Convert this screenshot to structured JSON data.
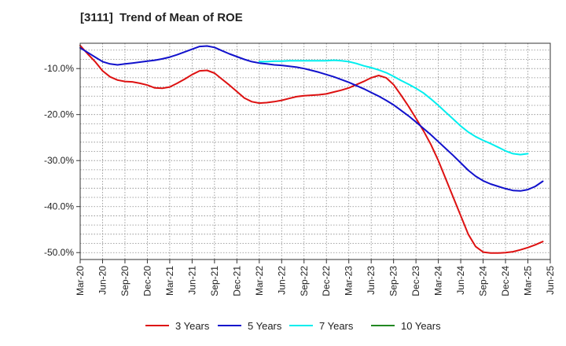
{
  "chart_data": {
    "type": "line",
    "title": "[3111]  Trend of Mean of ROE",
    "xlabel": "",
    "ylabel": "",
    "x_ticks": [
      "Mar-20",
      "Jun-20",
      "Sep-20",
      "Dec-20",
      "Mar-21",
      "Jun-21",
      "Sep-21",
      "Dec-21",
      "Mar-22",
      "Jun-22",
      "Sep-22",
      "Dec-22",
      "Mar-23",
      "Jun-23",
      "Sep-23",
      "Dec-23",
      "Mar-24",
      "Jun-24",
      "Sep-24",
      "Dec-24",
      "Mar-25",
      "Jun-25"
    ],
    "y_ticks": [
      -10,
      -20,
      -30,
      -40,
      -50
    ],
    "y_tick_labels": [
      "-10.0%",
      "-20.0%",
      "-30.0%",
      "-40.0%",
      "-50.0%"
    ],
    "ylim": [
      -51.5,
      -4.5
    ],
    "grid": true,
    "legend_position": "bottom",
    "series": [
      {
        "name": "3 Years",
        "color": "#dd1111",
        "points": [
          [
            "Mar-20",
            -5.0
          ],
          [
            "Apr-20",
            -6.8
          ],
          [
            "May-20",
            -8.5
          ],
          [
            "Jun-20",
            -10.5
          ],
          [
            "Jul-20",
            -11.8
          ],
          [
            "Aug-20",
            -12.5
          ],
          [
            "Sep-20",
            -12.8
          ],
          [
            "Oct-20",
            -12.9
          ],
          [
            "Nov-20",
            -13.2
          ],
          [
            "Dec-20",
            -13.6
          ],
          [
            "Jan-21",
            -14.2
          ],
          [
            "Feb-21",
            -14.3
          ],
          [
            "Mar-21",
            -14.0
          ],
          [
            "Apr-21",
            -13.2
          ],
          [
            "May-21",
            -12.3
          ],
          [
            "Jun-21",
            -11.3
          ],
          [
            "Jul-21",
            -10.5
          ],
          [
            "Aug-21",
            -10.4
          ],
          [
            "Sep-21",
            -11.0
          ],
          [
            "Oct-21",
            -12.3
          ],
          [
            "Nov-21",
            -13.6
          ],
          [
            "Dec-21",
            -15.0
          ],
          [
            "Jan-22",
            -16.4
          ],
          [
            "Feb-22",
            -17.2
          ],
          [
            "Mar-22",
            -17.5
          ],
          [
            "Apr-22",
            -17.4
          ],
          [
            "May-22",
            -17.2
          ],
          [
            "Jun-22",
            -16.9
          ],
          [
            "Jul-22",
            -16.5
          ],
          [
            "Aug-22",
            -16.1
          ],
          [
            "Sep-22",
            -15.9
          ],
          [
            "Oct-22",
            -15.8
          ],
          [
            "Nov-22",
            -15.7
          ],
          [
            "Dec-22",
            -15.5
          ],
          [
            "Jan-23",
            -15.1
          ],
          [
            "Feb-23",
            -14.7
          ],
          [
            "Mar-23",
            -14.2
          ],
          [
            "Apr-23",
            -13.5
          ],
          [
            "May-23",
            -12.8
          ],
          [
            "Jun-23",
            -12.0
          ],
          [
            "Jul-23",
            -11.5
          ],
          [
            "Aug-23",
            -12.0
          ],
          [
            "Sep-23",
            -13.5
          ],
          [
            "Oct-23",
            -15.8
          ],
          [
            "Nov-23",
            -18.2
          ],
          [
            "Dec-23",
            -20.8
          ],
          [
            "Jan-24",
            -23.5
          ],
          [
            "Feb-24",
            -26.5
          ],
          [
            "Mar-24",
            -30.0
          ],
          [
            "Apr-24",
            -34.0
          ],
          [
            "May-24",
            -38.0
          ],
          [
            "Jun-24",
            -42.0
          ],
          [
            "Jul-24",
            -46.0
          ],
          [
            "Aug-24",
            -48.7
          ],
          [
            "Sep-24",
            -49.9
          ],
          [
            "Oct-24",
            -50.1
          ],
          [
            "Nov-24",
            -50.1
          ],
          [
            "Dec-24",
            -50.0
          ],
          [
            "Jan-25",
            -49.8
          ],
          [
            "Feb-25",
            -49.4
          ],
          [
            "Mar-25",
            -48.9
          ],
          [
            "Apr-25",
            -48.3
          ],
          [
            "May-25",
            -47.6
          ]
        ]
      },
      {
        "name": "5 Years",
        "color": "#1111cc",
        "points": [
          [
            "Mar-20",
            -5.5
          ],
          [
            "Apr-20",
            -6.5
          ],
          [
            "May-20",
            -7.5
          ],
          [
            "Jun-20",
            -8.5
          ],
          [
            "Jul-20",
            -9.0
          ],
          [
            "Aug-20",
            -9.2
          ],
          [
            "Sep-20",
            -9.0
          ],
          [
            "Oct-20",
            -8.8
          ],
          [
            "Nov-20",
            -8.6
          ],
          [
            "Dec-20",
            -8.4
          ],
          [
            "Jan-21",
            -8.2
          ],
          [
            "Feb-21",
            -7.9
          ],
          [
            "Mar-21",
            -7.5
          ],
          [
            "Apr-21",
            -7.0
          ],
          [
            "May-21",
            -6.4
          ],
          [
            "Jun-21",
            -5.8
          ],
          [
            "Jul-21",
            -5.2
          ],
          [
            "Aug-21",
            -5.1
          ],
          [
            "Sep-21",
            -5.4
          ],
          [
            "Oct-21",
            -6.1
          ],
          [
            "Nov-21",
            -6.8
          ],
          [
            "Dec-21",
            -7.4
          ],
          [
            "Jan-22",
            -8.0
          ],
          [
            "Feb-22",
            -8.5
          ],
          [
            "Mar-22",
            -8.8
          ],
          [
            "Apr-22",
            -9.0
          ],
          [
            "May-22",
            -9.2
          ],
          [
            "Jun-22",
            -9.3
          ],
          [
            "Jul-22",
            -9.5
          ],
          [
            "Aug-22",
            -9.7
          ],
          [
            "Sep-22",
            -10.0
          ],
          [
            "Oct-22",
            -10.4
          ],
          [
            "Nov-22",
            -10.8
          ],
          [
            "Dec-22",
            -11.3
          ],
          [
            "Jan-23",
            -11.8
          ],
          [
            "Feb-23",
            -12.4
          ],
          [
            "Mar-23",
            -13.0
          ],
          [
            "Apr-23",
            -13.7
          ],
          [
            "May-23",
            -14.4
          ],
          [
            "Jun-23",
            -15.2
          ],
          [
            "Jul-23",
            -16.0
          ],
          [
            "Aug-23",
            -16.9
          ],
          [
            "Sep-23",
            -17.9
          ],
          [
            "Oct-23",
            -19.1
          ],
          [
            "Nov-23",
            -20.3
          ],
          [
            "Dec-23",
            -21.6
          ],
          [
            "Jan-24",
            -23.0
          ],
          [
            "Feb-24",
            -24.4
          ],
          [
            "Mar-24",
            -25.9
          ],
          [
            "Apr-24",
            -27.4
          ],
          [
            "May-24",
            -28.9
          ],
          [
            "Jun-24",
            -30.5
          ],
          [
            "Jul-24",
            -32.1
          ],
          [
            "Aug-24",
            -33.4
          ],
          [
            "Sep-24",
            -34.4
          ],
          [
            "Oct-24",
            -35.1
          ],
          [
            "Nov-24",
            -35.6
          ],
          [
            "Dec-24",
            -36.1
          ],
          [
            "Jan-25",
            -36.5
          ],
          [
            "Feb-25",
            -36.6
          ],
          [
            "Mar-25",
            -36.3
          ],
          [
            "Apr-25",
            -35.6
          ],
          [
            "May-25",
            -34.5
          ]
        ]
      },
      {
        "name": "7 Years",
        "color": "#00eeee",
        "points": [
          [
            "Mar-22",
            -8.5
          ],
          [
            "Apr-22",
            -8.5
          ],
          [
            "May-22",
            -8.4
          ],
          [
            "Jun-22",
            -8.4
          ],
          [
            "Jul-22",
            -8.3
          ],
          [
            "Aug-22",
            -8.3
          ],
          [
            "Sep-22",
            -8.3
          ],
          [
            "Oct-22",
            -8.3
          ],
          [
            "Nov-22",
            -8.3
          ],
          [
            "Dec-22",
            -8.3
          ],
          [
            "Jan-23",
            -8.2
          ],
          [
            "Feb-23",
            -8.3
          ],
          [
            "Mar-23",
            -8.5
          ],
          [
            "Apr-23",
            -8.9
          ],
          [
            "May-23",
            -9.4
          ],
          [
            "Jun-23",
            -9.8
          ],
          [
            "Jul-23",
            -10.3
          ],
          [
            "Aug-23",
            -10.9
          ],
          [
            "Sep-23",
            -11.7
          ],
          [
            "Oct-23",
            -12.6
          ],
          [
            "Nov-23",
            -13.4
          ],
          [
            "Dec-23",
            -14.3
          ],
          [
            "Jan-24",
            -15.3
          ],
          [
            "Feb-24",
            -16.6
          ],
          [
            "Mar-24",
            -18.0
          ],
          [
            "Apr-24",
            -19.5
          ],
          [
            "May-24",
            -21.0
          ],
          [
            "Jun-24",
            -22.5
          ],
          [
            "Jul-24",
            -23.8
          ],
          [
            "Aug-24",
            -24.8
          ],
          [
            "Sep-24",
            -25.6
          ],
          [
            "Oct-24",
            -26.3
          ],
          [
            "Nov-24",
            -27.1
          ],
          [
            "Dec-24",
            -27.9
          ],
          [
            "Jan-25",
            -28.5
          ],
          [
            "Feb-25",
            -28.7
          ],
          [
            "Mar-25",
            -28.5
          ]
        ]
      },
      {
        "name": "10 Years",
        "color": "#228822",
        "points": []
      }
    ]
  }
}
